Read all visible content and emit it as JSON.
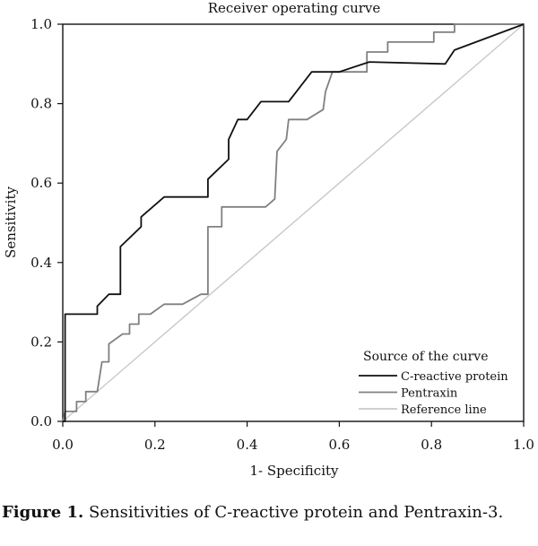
{
  "chart_data": {
    "type": "line",
    "title": "Receiver operating curve",
    "xlabel": "1- Specificity",
    "ylabel": "Sensitivity",
    "xlim": [
      0,
      1
    ],
    "ylim": [
      0,
      1
    ],
    "xticks": [
      "0.0",
      "0.2",
      "0.4",
      "0.6",
      "0.8",
      "1.0"
    ],
    "yticks": [
      "0.0",
      "0.2",
      "0.4",
      "0.6",
      "0.8",
      "1.0"
    ],
    "legend_title": "Source of the curve",
    "legend_position": "bottom-right",
    "series": [
      {
        "name": "C-reactive protein",
        "color": "#111111",
        "points": [
          [
            0,
            0
          ],
          [
            0.005,
            0
          ],
          [
            0.005,
            0.27
          ],
          [
            0.075,
            0.27
          ],
          [
            0.075,
            0.29
          ],
          [
            0.1,
            0.32
          ],
          [
            0.125,
            0.32
          ],
          [
            0.125,
            0.44
          ],
          [
            0.17,
            0.49
          ],
          [
            0.17,
            0.515
          ],
          [
            0.22,
            0.565
          ],
          [
            0.315,
            0.565
          ],
          [
            0.315,
            0.61
          ],
          [
            0.36,
            0.66
          ],
          [
            0.36,
            0.71
          ],
          [
            0.38,
            0.76
          ],
          [
            0.4,
            0.76
          ],
          [
            0.43,
            0.805
          ],
          [
            0.49,
            0.805
          ],
          [
            0.54,
            0.88
          ],
          [
            0.6,
            0.88
          ],
          [
            0.665,
            0.905
          ],
          [
            0.83,
            0.9
          ],
          [
            0.85,
            0.935
          ],
          [
            1,
            1
          ]
        ]
      },
      {
        "name": "Pentraxin",
        "color": "#808080",
        "points": [
          [
            0,
            0
          ],
          [
            0.005,
            0.025
          ],
          [
            0.03,
            0.025
          ],
          [
            0.03,
            0.05
          ],
          [
            0.05,
            0.05
          ],
          [
            0.05,
            0.075
          ],
          [
            0.075,
            0.075
          ],
          [
            0.085,
            0.15
          ],
          [
            0.1,
            0.15
          ],
          [
            0.1,
            0.195
          ],
          [
            0.13,
            0.22
          ],
          [
            0.145,
            0.22
          ],
          [
            0.145,
            0.245
          ],
          [
            0.165,
            0.245
          ],
          [
            0.165,
            0.27
          ],
          [
            0.19,
            0.27
          ],
          [
            0.22,
            0.295
          ],
          [
            0.26,
            0.295
          ],
          [
            0.3,
            0.32
          ],
          [
            0.315,
            0.32
          ],
          [
            0.315,
            0.49
          ],
          [
            0.345,
            0.49
          ],
          [
            0.345,
            0.54
          ],
          [
            0.44,
            0.54
          ],
          [
            0.46,
            0.56
          ],
          [
            0.465,
            0.68
          ],
          [
            0.485,
            0.71
          ],
          [
            0.49,
            0.76
          ],
          [
            0.53,
            0.76
          ],
          [
            0.565,
            0.785
          ],
          [
            0.57,
            0.83
          ],
          [
            0.585,
            0.88
          ],
          [
            0.66,
            0.88
          ],
          [
            0.66,
            0.93
          ],
          [
            0.705,
            0.93
          ],
          [
            0.705,
            0.955
          ],
          [
            0.805,
            0.955
          ],
          [
            0.805,
            0.98
          ],
          [
            0.85,
            0.98
          ],
          [
            0.85,
            1
          ],
          [
            1,
            1
          ]
        ]
      },
      {
        "name": "Reference line",
        "color": "#c8c8c8",
        "points": [
          [
            0,
            0
          ],
          [
            1,
            1
          ]
        ]
      }
    ]
  },
  "caption": {
    "label": "Figure 1.",
    "text": "Sensitivities of C-reactive protein and Pentraxin-3."
  }
}
